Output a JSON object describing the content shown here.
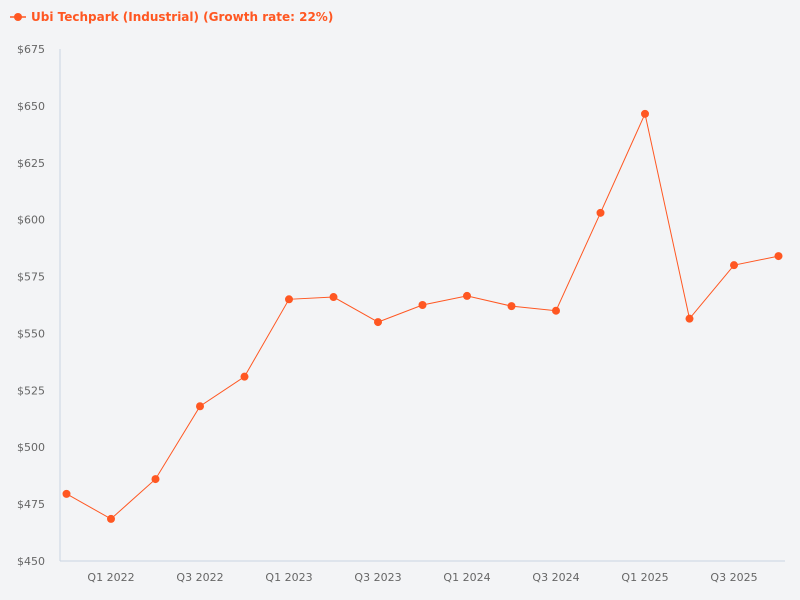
{
  "chart_data": {
    "type": "line",
    "title": "",
    "xlabel": "",
    "ylabel": "",
    "ylim": [
      450,
      675
    ],
    "yticks": [
      "$450",
      "$475",
      "$500",
      "$525",
      "$550",
      "$575",
      "$600",
      "$625",
      "$650",
      "$675"
    ],
    "ytick_values": [
      450,
      475,
      500,
      525,
      550,
      575,
      600,
      625,
      650,
      675
    ],
    "categories": [
      "Q4 2021",
      "Q1 2022",
      "Q2 2022",
      "Q3 2022",
      "Q4 2022",
      "Q1 2023",
      "Q2 2023",
      "Q3 2023",
      "Q4 2023",
      "Q1 2024",
      "Q2 2024",
      "Q3 2024",
      "Q4 2024",
      "Q1 2025",
      "Q2 2025",
      "Q3 2025",
      "Q4 2025"
    ],
    "xtick_labels": [
      "Q1 2022",
      "Q3 2022",
      "Q1 2023",
      "Q3 2023",
      "Q1 2024",
      "Q3 2024",
      "Q1 2025",
      "Q3 2025"
    ],
    "grid": false,
    "legend_position": "top-left",
    "series": [
      {
        "name": "Ubi Techpark (Industrial) (Growth rate: 22%)",
        "color": "#ff5722",
        "values": [
          479.5,
          468.5,
          486,
          518,
          531,
          565,
          566,
          555,
          562.5,
          566.5,
          562,
          560,
          603,
          646.5,
          556.5,
          580,
          584
        ]
      }
    ]
  }
}
